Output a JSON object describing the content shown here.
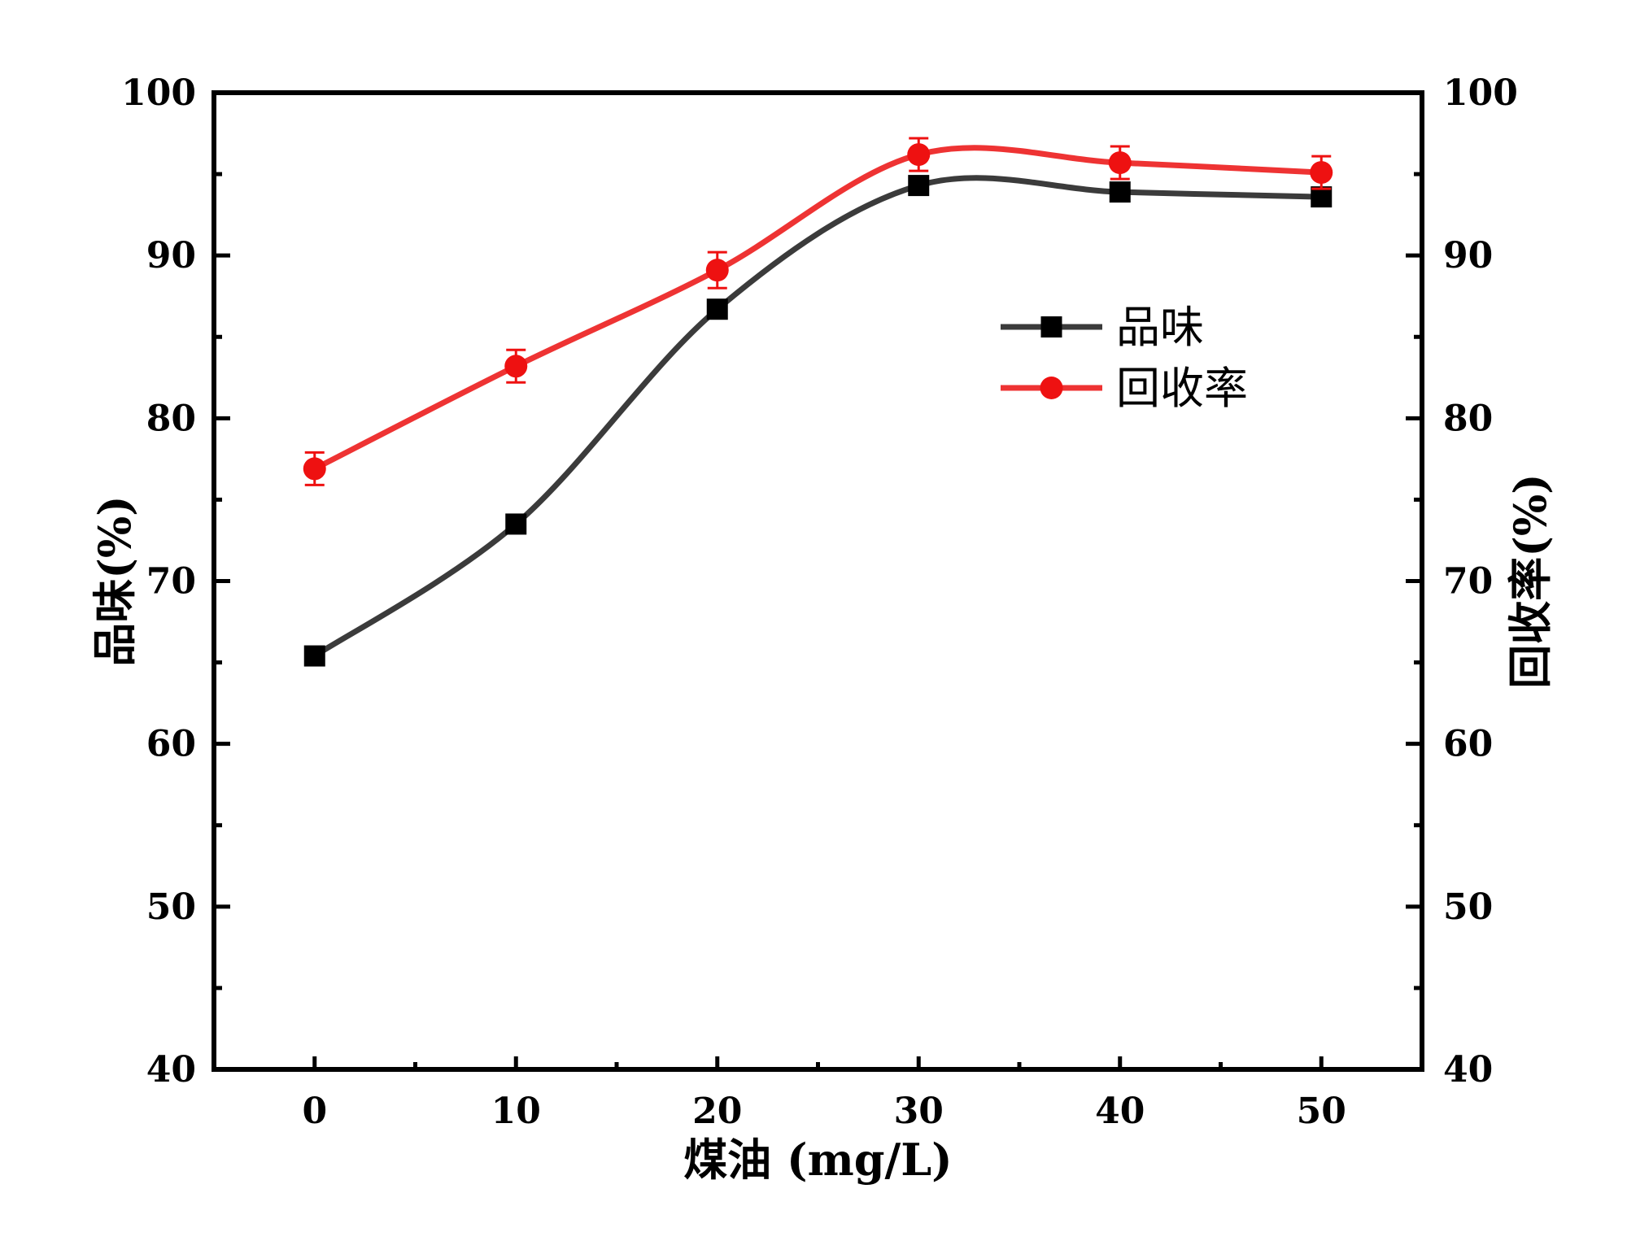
{
  "chart_data": {
    "type": "line",
    "x": [
      0,
      10,
      20,
      30,
      40,
      50
    ],
    "xlim": [
      -5,
      55
    ],
    "ylim": [
      40,
      100
    ],
    "y2lim": [
      40,
      100
    ],
    "x_ticks": [
      "0",
      "10",
      "20",
      "30",
      "40",
      "50"
    ],
    "y_ticks": [
      "40",
      "50",
      "60",
      "70",
      "80",
      "90",
      "100"
    ],
    "y2_ticks": [
      "40",
      "50",
      "60",
      "70",
      "80",
      "90",
      "100"
    ],
    "xlabel": "煤油 (mg/L)",
    "ylabel": "品味(%)",
    "y2label": "回收率(%)",
    "legend_position": "upper-right",
    "series": [
      {
        "name": "品味",
        "axis": "left",
        "marker": "square",
        "color": "#000000",
        "line_color": "#3b3b3b",
        "values": [
          65.4,
          73.5,
          86.7,
          94.3,
          93.9,
          93.6
        ]
      },
      {
        "name": "回收率",
        "axis": "right",
        "marker": "circle",
        "color": "#ee1111",
        "line_color": "#ee3333",
        "values": [
          76.9,
          83.2,
          89.1,
          96.2,
          95.7,
          95.1
        ],
        "error": [
          1.0,
          1.0,
          1.1,
          1.0,
          1.0,
          1.0
        ]
      }
    ]
  }
}
